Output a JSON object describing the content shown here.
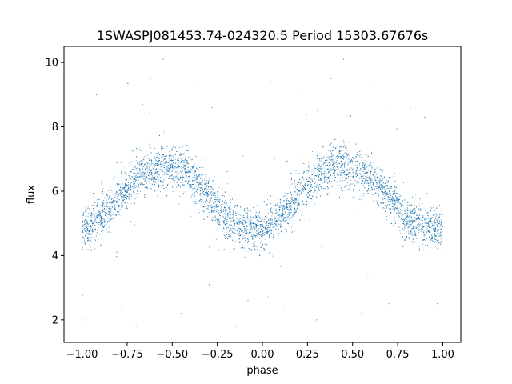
{
  "chart_data": {
    "type": "scatter",
    "title": "1SWASPJ081453.74-024320.5 Period 15303.67676s",
    "xlabel": "phase",
    "ylabel": "flux",
    "xlim": [
      -1.1,
      1.1
    ],
    "ylim": [
      1.3,
      10.5
    ],
    "xticks": [
      -1.0,
      -0.75,
      -0.5,
      -0.25,
      0.0,
      0.25,
      0.5,
      0.75,
      1.0
    ],
    "xtick_labels": [
      "−1.00",
      "−0.75",
      "−0.50",
      "−0.25",
      "0.00",
      "0.25",
      "0.50",
      "0.75",
      "1.00"
    ],
    "yticks": [
      2,
      4,
      6,
      8,
      10
    ],
    "ytick_labels": [
      "2",
      "4",
      "6",
      "8",
      "10"
    ],
    "grid": false,
    "series": [
      {
        "color": "#1f77b4",
        "model": "sinusoid: flux = 5.8 + 1.0*cos(2*pi*(phase - 0.45)), phase in [-1, 1], scatter about 0.35",
        "points": [
          [
            -1.0,
            4.85
          ],
          [
            -0.95,
            4.9
          ],
          [
            -0.9,
            5.15
          ],
          [
            -0.85,
            5.45
          ],
          [
            -0.8,
            5.8
          ],
          [
            -0.75,
            6.1
          ],
          [
            -0.7,
            6.4
          ],
          [
            -0.65,
            6.6
          ],
          [
            -0.6,
            6.75
          ],
          [
            -0.55,
            6.8
          ],
          [
            -0.5,
            6.75
          ],
          [
            -0.45,
            6.65
          ],
          [
            -0.4,
            6.45
          ],
          [
            -0.35,
            6.2
          ],
          [
            -0.3,
            5.85
          ],
          [
            -0.25,
            5.5
          ],
          [
            -0.2,
            5.15
          ],
          [
            -0.15,
            4.95
          ],
          [
            -0.1,
            4.85
          ],
          [
            -0.05,
            4.8
          ],
          [
            0.0,
            4.85
          ],
          [
            0.05,
            4.95
          ],
          [
            0.1,
            5.2
          ],
          [
            0.15,
            5.5
          ],
          [
            0.2,
            5.85
          ],
          [
            0.25,
            6.15
          ],
          [
            0.3,
            6.45
          ],
          [
            0.35,
            6.65
          ],
          [
            0.4,
            6.75
          ],
          [
            0.45,
            6.8
          ],
          [
            0.5,
            6.75
          ],
          [
            0.55,
            6.6
          ],
          [
            0.6,
            6.4
          ],
          [
            0.65,
            6.15
          ],
          [
            0.7,
            5.85
          ],
          [
            0.75,
            5.5
          ],
          [
            0.8,
            5.15
          ],
          [
            0.85,
            4.95
          ],
          [
            0.9,
            4.85
          ],
          [
            0.95,
            4.8
          ],
          [
            1.0,
            4.85
          ]
        ],
        "outliers": [
          [
            -0.98,
            2.0
          ],
          [
            -0.92,
            9.0
          ],
          [
            -0.78,
            2.4
          ],
          [
            -0.7,
            1.8
          ],
          [
            -0.62,
            9.5
          ],
          [
            -0.55,
            10.1
          ],
          [
            -0.45,
            2.2
          ],
          [
            -0.38,
            9.3
          ],
          [
            -0.28,
            8.6
          ],
          [
            -0.15,
            1.8
          ],
          [
            -0.08,
            2.6
          ],
          [
            0.05,
            9.4
          ],
          [
            0.12,
            2.3
          ],
          [
            0.22,
            9.1
          ],
          [
            0.3,
            2.0
          ],
          [
            0.38,
            9.5
          ],
          [
            0.45,
            10.1
          ],
          [
            0.55,
            2.2
          ],
          [
            0.62,
            9.3
          ],
          [
            0.7,
            2.5
          ],
          [
            0.82,
            8.6
          ],
          [
            0.9,
            8.3
          ],
          [
            0.97,
            2.5
          ]
        ]
      }
    ]
  }
}
